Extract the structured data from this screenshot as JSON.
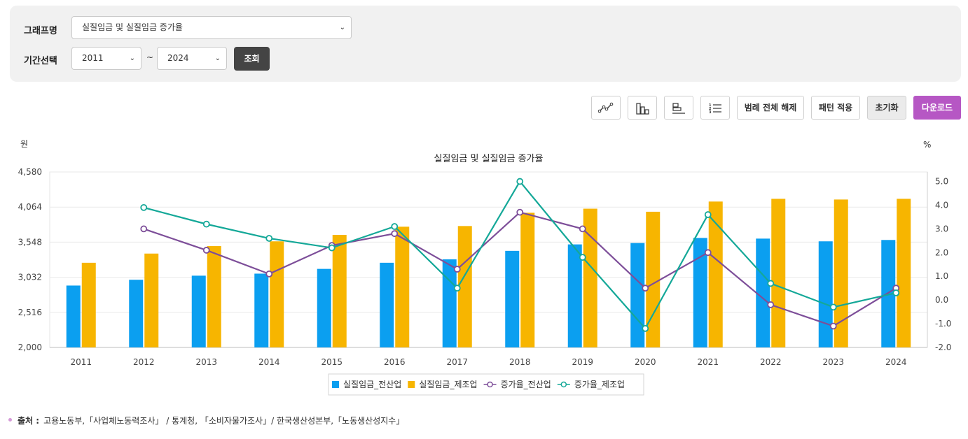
{
  "filters": {
    "graph_name_label": "그래프명",
    "graph_name_value": "실질임금 및 실질임금 증가율",
    "period_label": "기간선택",
    "start_year": "2011",
    "end_year": "2024",
    "tilde": "~",
    "query_button": "조회"
  },
  "toolbar": {
    "icons": [
      "line-chart-icon",
      "bar-chart-icon",
      "horizontal-bar-icon",
      "list-icon"
    ],
    "legend_off": "범례 전체 해제",
    "pattern": "패턴 적용",
    "reset": "초기화",
    "download": "다운로드"
  },
  "chart_data": {
    "type": "bar",
    "title": "실질임금 및 실질임금 증가율",
    "y_left_unit": "원",
    "y_right_unit": "%",
    "categories": [
      "2011",
      "2012",
      "2013",
      "2014",
      "2015",
      "2016",
      "2017",
      "2018",
      "2019",
      "2020",
      "2021",
      "2022",
      "2023",
      "2024"
    ],
    "y_left_ticks": [
      "4,580",
      "4,064",
      "3,548",
      "3,032",
      "2,516",
      "2,000"
    ],
    "y_left_range": [
      2000,
      4580
    ],
    "y_right_ticks": [
      "5.0",
      "4.0",
      "3.0",
      "2.0",
      "1.0",
      "0.0",
      "-1.0",
      "-2.0"
    ],
    "y_right_range": [
      -2.0,
      5.4
    ],
    "grid": true,
    "legend_position": "bottom",
    "series": [
      {
        "name": "실질임금_전산업",
        "kind": "bar",
        "axis": "left",
        "color": "#0b9ff0",
        "values": [
          2910,
          2995,
          3055,
          3085,
          3155,
          3245,
          3295,
          3420,
          3515,
          3535,
          3610,
          3600,
          3560,
          3580
        ]
      },
      {
        "name": "실질임금_제조업",
        "kind": "bar",
        "axis": "left",
        "color": "#f7b500",
        "values": [
          3245,
          3380,
          3490,
          3560,
          3655,
          3775,
          3785,
          3980,
          4040,
          3995,
          4145,
          4185,
          4175,
          4185
        ]
      },
      {
        "name": "증가율_전산업",
        "kind": "line",
        "axis": "right",
        "color": "#7d4e99",
        "values": [
          null,
          3.0,
          2.1,
          1.1,
          2.3,
          2.8,
          1.3,
          3.7,
          3.0,
          0.5,
          2.0,
          -0.2,
          -1.1,
          0.5
        ]
      },
      {
        "name": "증가율_제조업",
        "kind": "line",
        "axis": "right",
        "color": "#14a898",
        "values": [
          null,
          3.9,
          3.2,
          2.6,
          2.2,
          3.1,
          0.5,
          5.0,
          1.8,
          -1.2,
          3.6,
          0.7,
          -0.3,
          0.3
        ]
      }
    ]
  },
  "source": {
    "label": "출처 :",
    "text": "고용노동부,「사업체노동력조사」 / 통계청, 「소비자물가조사」/ 한국생산성본부,「노동생산성지수」"
  }
}
